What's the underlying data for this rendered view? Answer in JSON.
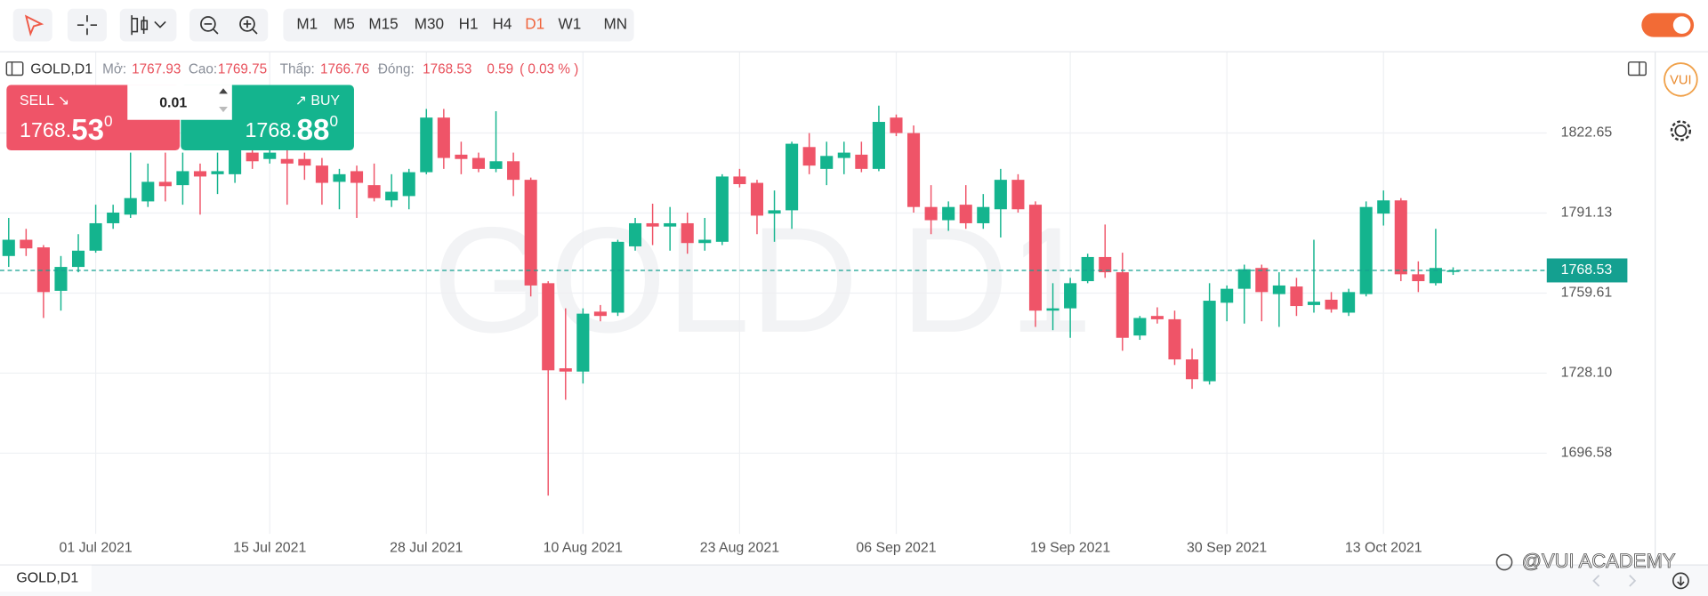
{
  "toolbar": {
    "timeframes": [
      "M1",
      "M5",
      "M15",
      "M30",
      "H1",
      "H4",
      "D1",
      "W1",
      "MN"
    ],
    "active": "D1"
  },
  "header": {
    "symbol": "GOLD,D1",
    "open_label": "Mở:",
    "open": "1767.93",
    "high_label": "Cao:",
    "high": "1769.75",
    "low_label": "Thấp:",
    "low": "1766.76",
    "close_label": "Đóng:",
    "close": "1768.53",
    "change": "0.59",
    "change_pct": "( 0.03 % )"
  },
  "trade_panel": {
    "sell_label": "SELL ↘",
    "sell_main": "1768.",
    "sell_big": "53",
    "sell_sup": "0",
    "lot": "0.01",
    "buy_label": "↗ BUY",
    "buy_main": "1768.",
    "buy_big": "88",
    "buy_sup": "0"
  },
  "watermark": "GOLD D1",
  "logo": "VUI",
  "bottom_tab": "GOLD,D1",
  "credit": "@VUI ACADEMY",
  "chart_data": {
    "type": "candlestick",
    "categories": [
      null,
      null,
      null,
      null,
      null,
      "01 Jul 2021",
      null,
      null,
      null,
      null,
      null,
      null,
      null,
      null,
      null,
      "15 Jul 2021",
      null,
      null,
      null,
      null,
      null,
      null,
      null,
      null,
      "28 Jul 2021",
      null,
      null,
      null,
      null,
      null,
      null,
      null,
      null,
      "10 Aug 2021",
      null,
      null,
      null,
      null,
      null,
      null,
      null,
      null,
      "23 Aug 2021",
      null,
      null,
      null,
      null,
      null,
      null,
      null,
      null,
      "06 Sep 2021",
      null,
      null,
      null,
      null,
      null,
      null,
      null,
      null,
      null,
      "19 Sep 2021",
      null,
      null,
      null,
      null,
      null,
      null,
      null,
      null,
      "30 Sep 2021",
      null,
      null,
      null,
      null,
      null,
      null,
      null,
      null,
      "13 Oct 2021",
      null,
      null,
      null,
      null
    ],
    "open": [
      1774.2,
      1780.6,
      1777.6,
      1760.5,
      1769.9,
      1776.3,
      1787.1,
      1790.5,
      1795.7,
      1803.4,
      1802.1,
      1807.6,
      1806.4,
      1806.4,
      1814.9,
      1812.4,
      1812.4,
      1812.4,
      1809.8,
      1803.4,
      1807.6,
      1802.1,
      1796.1,
      1797.8,
      1807.2,
      1828.7,
      1814.1,
      1812.8,
      1808.5,
      1811.5,
      1804.2,
      1763.5,
      1730.0,
      1728.7,
      1752.3,
      1751.9,
      1778.0,
      1787.1,
      1785.8,
      1787.1,
      1779.3,
      1779.8,
      1805.5,
      1803.0,
      1790.9,
      1792.2,
      1817.1,
      1808.5,
      1812.8,
      1814.1,
      1808.5,
      1828.7,
      1822.6,
      1793.5,
      1788.3,
      1794.4,
      1787.1,
      1792.6,
      1804.2,
      1794.4,
      1752.7,
      1753.6,
      1764.3,
      1773.8,
      1767.8,
      1742.9,
      1750.6,
      1749.3,
      1733.5,
      1724.9,
      1755.8,
      1761.3,
      1769.5,
      1759.2,
      1762.2,
      1754.9,
      1757.0,
      1751.9,
      1759.2,
      1790.9,
      1796.1,
      1767.0,
      1763.5,
      1767.93
    ],
    "high": [
      1789.2,
      1784.9,
      1778.5,
      1774.2,
      1782.8,
      1794.4,
      1794.4,
      1814.9,
      1810.6,
      1814.9,
      1814.9,
      1810.6,
      1814.9,
      1825.6,
      1821.4,
      1817.1,
      1819.2,
      1814.9,
      1812.8,
      1808.5,
      1809.8,
      1810.6,
      1806.4,
      1808.5,
      1832.1,
      1832.1,
      1819.2,
      1814.9,
      1831.2,
      1814.9,
      1805.1,
      1764.3,
      1753.6,
      1753.6,
      1754.9,
      1780.6,
      1789.2,
      1794.8,
      1793.5,
      1791.3,
      1789.2,
      1806.4,
      1808.5,
      1804.2,
      1800.0,
      1819.2,
      1822.6,
      1819.2,
      1819.2,
      1819.2,
      1833.4,
      1829.9,
      1825.6,
      1802.1,
      1795.7,
      1802.1,
      1798.6,
      1808.5,
      1806.4,
      1795.7,
      1763.5,
      1765.6,
      1775.1,
      1786.6,
      1775.5,
      1750.6,
      1754.0,
      1752.7,
      1737.8,
      1763.5,
      1762.6,
      1770.8,
      1770.8,
      1767.8,
      1765.6,
      1780.6,
      1760.0,
      1761.3,
      1795.7,
      1800.0,
      1797.0,
      1772.1,
      1784.9,
      1769.75
    ],
    "low": [
      1769.9,
      1774.2,
      1749.8,
      1752.7,
      1767.8,
      1775.5,
      1784.9,
      1789.2,
      1793.5,
      1795.7,
      1794.4,
      1790.5,
      1798.6,
      1803.0,
      1808.5,
      1810.6,
      1794.4,
      1804.2,
      1794.4,
      1792.6,
      1789.2,
      1795.7,
      1793.5,
      1792.6,
      1806.4,
      1808.5,
      1806.4,
      1807.2,
      1807.2,
      1797.8,
      1758.3,
      1679.9,
      1717.6,
      1724.0,
      1748.5,
      1750.6,
      1776.3,
      1778.5,
      1776.3,
      1775.1,
      1776.3,
      1778.5,
      1801.2,
      1782.8,
      1779.8,
      1784.9,
      1806.4,
      1802.1,
      1806.4,
      1807.2,
      1807.6,
      1821.4,
      1791.3,
      1782.8,
      1784.1,
      1784.9,
      1784.9,
      1781.5,
      1791.3,
      1746.3,
      1745.0,
      1742.0,
      1763.5,
      1765.6,
      1736.9,
      1741.2,
      1747.6,
      1731.3,
      1721.9,
      1723.6,
      1748.5,
      1747.6,
      1748.5,
      1746.3,
      1750.6,
      1751.9,
      1751.9,
      1750.6,
      1758.3,
      1786.2,
      1764.3,
      1760.0,
      1762.6,
      1766.76
    ],
    "close": [
      1780.6,
      1777.2,
      1760.0,
      1769.9,
      1776.3,
      1787.1,
      1791.3,
      1797.0,
      1803.4,
      1801.7,
      1807.6,
      1805.5,
      1807.6,
      1819.2,
      1811.5,
      1814.9,
      1810.6,
      1809.8,
      1803.0,
      1806.4,
      1803.0,
      1797.0,
      1799.5,
      1807.2,
      1828.7,
      1812.8,
      1812.4,
      1808.5,
      1811.5,
      1804.2,
      1762.6,
      1729.2,
      1728.7,
      1751.5,
      1750.6,
      1779.8,
      1787.1,
      1785.8,
      1787.1,
      1779.3,
      1780.6,
      1805.5,
      1802.5,
      1790.1,
      1792.2,
      1818.4,
      1809.8,
      1813.6,
      1814.9,
      1808.5,
      1827.0,
      1822.6,
      1793.5,
      1788.3,
      1793.5,
      1787.1,
      1793.5,
      1804.2,
      1792.6,
      1752.7,
      1753.6,
      1763.5,
      1773.8,
      1767.8,
      1742.0,
      1749.8,
      1749.3,
      1733.5,
      1725.7,
      1756.6,
      1761.3,
      1769.0,
      1760.0,
      1762.6,
      1754.5,
      1756.2,
      1753.2,
      1760.0,
      1793.5,
      1796.1,
      1767.0,
      1764.3,
      1769.5,
      1768.53
    ],
    "up_color": "#14b48e",
    "down_color": "#ef5468",
    "ylim": [
      1664.8,
      1854.4
    ],
    "yticks": [
      1696.58,
      {
        "value": 1728.1,
        "label": "1728.10"
      },
      1759.61,
      1791.13,
      1822.65
    ],
    "grid": true,
    "last_price": 1768.53,
    "last_price_color": "#14a090"
  }
}
